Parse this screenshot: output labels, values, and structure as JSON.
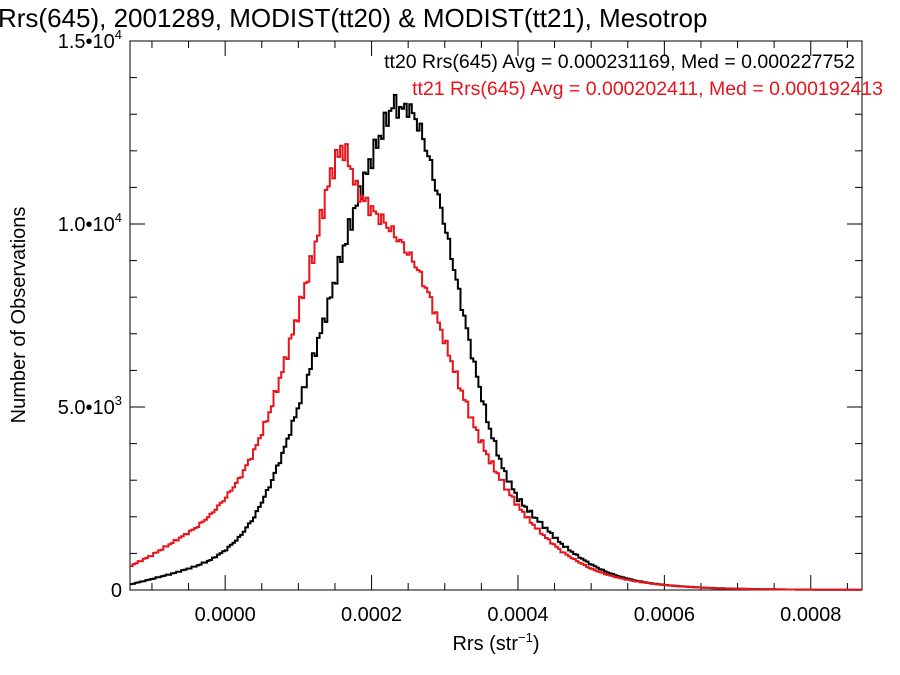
{
  "chart_data": {
    "type": "line",
    "title": "Rrs(645), 2001289, MODIST(tt20) & MODIST(tt21), Mesotrop",
    "xlabel": "Rrs (str",
    "xlabel_sup": "−1",
    "xlabel_tail": ")",
    "ylabel": "Number of Observations",
    "xlim": [
      -0.00013,
      0.00087
    ],
    "ylim": [
      0,
      15000
    ],
    "x_ticks": [
      {
        "value": 0.0,
        "label": "0.0000"
      },
      {
        "value": 0.0002,
        "label": "0.0002"
      },
      {
        "value": 0.0004,
        "label": "0.0004"
      },
      {
        "value": 0.0006,
        "label": "0.0006"
      },
      {
        "value": 0.0008,
        "label": "0.0008"
      }
    ],
    "y_ticks": [
      {
        "value": 0,
        "base": "0",
        "exp": ""
      },
      {
        "value": 5000,
        "base": "5.0•10",
        "exp": "3"
      },
      {
        "value": 10000,
        "base": "1.0•10",
        "exp": "4"
      },
      {
        "value": 15000,
        "base": "1.5•10",
        "exp": "4"
      }
    ],
    "grid": false,
    "legend_position": "top-right",
    "series": [
      {
        "name": "tt20 Rrs(645)",
        "legend": "tt20 Rrs(645) Avg = 0.000231169, Med = 0.000227752",
        "color": "#000000",
        "step": "x=-0.00013:150;-0.0001:300;-0.00007:460;-0.00004:650;-0.00002:820;0:1080;0.00002:1450;0.00004:2000;0.00006:2800;0.00008:3800;0.0001:5000;0.00012:6300;0.00014:7700;0.00016:9200;0.00018:10600;0.0002:11800;0.00021:12300;0.00022:12800;0.00023:13300;0.00024:13100;0.00025:13200;0.00026:12900;0.00027:12400;0.00028:11700;0.0003:10000;0.00032:8100;0.00034:6200;0.00036:4500;0.00038:3300;0.0004:2500;0.00042:2050;0.00044:1650;0.00046:1250;0.00048:950;0.0005:700;0.00052:500;0.00054:360;0.00056:260;0.00058:190;0.0006:140;0.00062:105;0.00064:80;0.00066:60;0.00068:45;0.0007:35;0.00074:20;0.00078:12;0.00082:8;0.00087:5"
      },
      {
        "name": "tt21 Rrs(645)",
        "legend": "tt21 Rrs(645) Avg = 0.000202411, Med = 0.000192413",
        "color": "#e8141b",
        "step": "x=-0.00013:650;-0.0001:950;-0.00007:1320;-0.00004:1700;-0.00002:2050;0:2500;0.00002:3050;0.00004:3800;0.00006:4800;0.00008:6100;0.0001:7600;0.00012:9100;0.00014:11000;0.00015:11700;0.00016:12100;0.00017:11700;0.00018:10900;0.0002:10400;0.00022:10000;0.00024:9500;0.00026:8900;0.00028:8000;0.0003:6800;0.00032:5600;0.00034:4500;0.00036:3600;0.00038:2900;0.0004:2300;0.00042:1800;0.00044:1400;0.00046:1050;0.00048:800;0.0005:580;0.00052:430;0.00054:320;0.00056:240;0.00058:180;0.0006:135;0.00062:100;0.00064:75;0.00066:55;0.00068:40;0.0007:30;0.00074:18;0.00078:12;0.00082:8;0.00087:5"
      }
    ]
  }
}
